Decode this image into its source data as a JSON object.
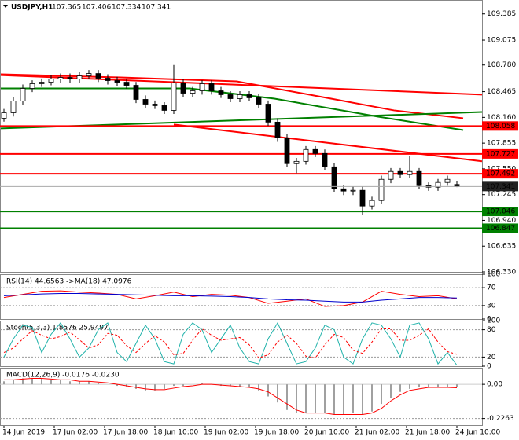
{
  "chart_data": [
    {
      "type": "candlestick",
      "title": "USDJPY,H1",
      "x": [
        0,
        3,
        6,
        9,
        12,
        15,
        18,
        21,
        24,
        27,
        30,
        33,
        36,
        39,
        42,
        45,
        48,
        51,
        54,
        57,
        60,
        63,
        66,
        69,
        72,
        75,
        78,
        81,
        84,
        87,
        90,
        93,
        96,
        99,
        102,
        105,
        108,
        111,
        114,
        117,
        120,
        123,
        126,
        129,
        132,
        135,
        138,
        141,
        144
      ],
      "open": [
        108.15,
        108.215,
        108.354,
        108.503,
        108.559,
        108.577,
        108.614,
        108.633,
        108.614,
        108.651,
        108.679,
        108.624,
        108.596,
        108.577,
        108.54,
        108.373,
        108.317,
        108.299,
        108.243,
        108.568,
        108.447,
        108.475,
        108.559,
        108.475,
        108.429,
        108.382,
        108.429,
        108.392,
        108.317,
        108.104,
        107.918,
        107.612,
        107.639,
        107.779,
        107.732,
        107.574,
        107.314,
        107.287,
        107.296,
        107.11,
        107.175,
        107.426,
        107.519,
        107.482,
        107.519,
        107.352,
        107.333,
        107.389,
        107.365
      ],
      "high": [
        108.26,
        108.4,
        108.55,
        108.6,
        108.62,
        108.66,
        108.68,
        108.68,
        108.7,
        108.72,
        108.72,
        108.67,
        108.64,
        108.62,
        108.58,
        108.42,
        108.36,
        108.34,
        108.78,
        108.61,
        108.52,
        108.6,
        108.6,
        108.52,
        108.47,
        108.47,
        108.47,
        108.44,
        108.36,
        108.15,
        107.96,
        107.68,
        107.82,
        107.82,
        107.78,
        107.62,
        107.36,
        107.34,
        107.34,
        107.22,
        107.47,
        107.56,
        107.56,
        107.7,
        107.56,
        107.39,
        107.43,
        107.47,
        107.406
      ],
      "low": [
        108.11,
        108.17,
        108.31,
        108.46,
        108.52,
        108.54,
        108.57,
        108.57,
        108.57,
        108.61,
        108.58,
        108.55,
        108.53,
        108.5,
        108.33,
        108.27,
        108.26,
        108.2,
        108.2,
        108.4,
        108.4,
        108.43,
        108.43,
        108.39,
        108.34,
        108.34,
        108.35,
        108.27,
        108.06,
        107.87,
        107.57,
        107.5,
        107.6,
        107.69,
        107.53,
        107.27,
        107.24,
        107.24,
        107.0,
        107.07,
        107.13,
        107.38,
        107.44,
        107.44,
        107.31,
        107.29,
        107.29,
        107.35,
        107.334
      ],
      "close": [
        108.215,
        108.354,
        108.503,
        108.559,
        108.577,
        108.614,
        108.633,
        108.614,
        108.651,
        108.679,
        108.624,
        108.596,
        108.577,
        108.54,
        108.373,
        108.317,
        108.299,
        108.243,
        108.568,
        108.447,
        108.475,
        108.559,
        108.475,
        108.429,
        108.382,
        108.429,
        108.392,
        108.317,
        108.104,
        107.918,
        107.612,
        107.639,
        107.779,
        107.732,
        107.574,
        107.314,
        107.287,
        107.296,
        107.11,
        107.175,
        107.426,
        107.519,
        107.482,
        107.519,
        107.352,
        107.333,
        107.389,
        107.426,
        107.341
      ],
      "ylim": [
        106.33,
        109.55
      ],
      "yticks": [
        109.385,
        109.075,
        {
          "value": 108.78,
          "label": "108.780"
        },
        108.465,
        {
          "value": 108.16,
          "label": "108.160"
        },
        107.855,
        {
          "value": 107.55,
          "label": "107.550"
        },
        107.245,
        {
          "value": 106.94,
          "label": "106.940"
        },
        106.635,
        {
          "value": 106.33,
          "label": "106.330"
        }
      ],
      "xlim": [
        -1.25,
        152
      ],
      "xticks": [
        {
          "value": 0,
          "label": "14 Jun 2019"
        },
        {
          "value": 16,
          "label": "17 Jun 02:00"
        },
        {
          "value": 32,
          "label": "17 Jun 18:00"
        },
        {
          "value": 48,
          "label": "18 Jun 10:00"
        },
        {
          "value": 64,
          "label": "19 Jun 02:00"
        },
        {
          "value": 80,
          "label": "19 Jun 18:00"
        },
        {
          "value": 96,
          "label": "20 Jun 10:00"
        },
        {
          "value": 112,
          "label": "21 Jun 02:00"
        },
        {
          "value": 128,
          "label": "21 Jun 18:00"
        },
        {
          "value": 144,
          "label": "24 Jun 10:00"
        }
      ],
      "lines": [
        {
          "color": "#ff0000",
          "x": [
            -1,
            152
          ],
          "y": [
            108.66,
            108.43
          ]
        },
        {
          "color": "#ff0000",
          "x": [
            -1,
            37,
            74,
            104,
            124,
            146
          ],
          "y": [
            108.67,
            108.633,
            108.587,
            108.382,
            108.243,
            108.15
          ]
        },
        {
          "color": "#008000",
          "x": [
            -1,
            59,
            86,
            119,
            146
          ],
          "y": [
            108.503,
            108.503,
            108.382,
            108.168,
            108.01
          ]
        },
        {
          "color": "#008000",
          "x": [
            -1,
            152
          ],
          "y": [
            108.029,
            108.224
          ]
        },
        {
          "color": "#ff0000",
          "x": [
            54,
            152
          ],
          "y": [
            108.076,
            107.64
          ]
        }
      ],
      "levels": [
        {
          "value": 108.058,
          "color": "#ff0000"
        },
        {
          "value": 107.727,
          "color": "#ff0000"
        },
        {
          "value": 107.492,
          "color": "#ff0000"
        },
        {
          "value": 107.046,
          "color": "#008000"
        },
        {
          "value": 106.847,
          "color": "#008000"
        }
      ]
    },
    {
      "type": "line",
      "title": "RSI(14) 44.6563  ->MA(18) 47.0976",
      "x": [
        0,
        6,
        12,
        18,
        24,
        30,
        36,
        42,
        48,
        54,
        60,
        66,
        72,
        78,
        84,
        90,
        96,
        102,
        108,
        114,
        120,
        126,
        132,
        138,
        144
      ],
      "series": [
        {
          "color": "#ff0000",
          "values": [
            48,
            55,
            62,
            63,
            60,
            58,
            55,
            45,
            52,
            60,
            50,
            55,
            53,
            48,
            35,
            40,
            45,
            28,
            30,
            38,
            62,
            55,
            50,
            52,
            45
          ]
        },
        {
          "color": "#0000cd",
          "values": [
            52,
            54,
            56,
            57,
            57,
            56,
            55,
            54,
            53,
            52,
            52,
            51,
            50,
            48,
            45,
            43,
            42,
            40,
            38,
            38,
            42,
            45,
            48,
            48,
            47
          ]
        }
      ],
      "ylim": [
        0,
        100
      ],
      "yticks": [
        100,
        70,
        30,
        0
      ]
    },
    {
      "type": "line",
      "title": "Stoch(5,3,3) 1.8576 25.9497",
      "x": [
        0,
        3,
        6,
        9,
        12,
        15,
        18,
        21,
        24,
        27,
        30,
        33,
        36,
        39,
        42,
        45,
        48,
        51,
        54,
        57,
        60,
        63,
        66,
        69,
        72,
        75,
        78,
        81,
        84,
        87,
        90,
        93,
        96,
        99,
        102,
        105,
        108,
        111,
        114,
        117,
        120,
        123,
        126,
        129,
        132,
        135,
        138,
        141,
        144
      ],
      "series": [
        {
          "color": "#20b2aa",
          "values": [
            20,
            60,
            90,
            85,
            30,
            70,
            95,
            60,
            20,
            40,
            80,
            95,
            30,
            10,
            50,
            90,
            60,
            10,
            5,
            70,
            95,
            80,
            30,
            60,
            90,
            40,
            10,
            5,
            60,
            95,
            50,
            5,
            10,
            40,
            90,
            80,
            20,
            5,
            60,
            95,
            90,
            60,
            20,
            90,
            95,
            60,
            5,
            30,
            2
          ]
        },
        {
          "color": "#ff0000",
          "dashed": true,
          "values": [
            30,
            40,
            60,
            78,
            68,
            60,
            65,
            75,
            58,
            40,
            47,
            72,
            68,
            45,
            30,
            50,
            67,
            53,
            25,
            28,
            57,
            82,
            68,
            57,
            60,
            63,
            47,
            18,
            25,
            53,
            68,
            50,
            22,
            18,
            47,
            70,
            63,
            35,
            28,
            53,
            82,
            82,
            57,
            57,
            68,
            82,
            53,
            32,
            26
          ]
        }
      ],
      "ylim": [
        0,
        100
      ],
      "yticks": [
        100,
        80,
        20,
        0
      ]
    },
    {
      "type": "macd",
      "title": "MACD(12,26,9) -0.0176 -0.0230",
      "x": [
        0,
        3,
        6,
        9,
        12,
        15,
        18,
        21,
        24,
        27,
        30,
        33,
        36,
        39,
        42,
        45,
        48,
        51,
        54,
        57,
        60,
        63,
        66,
        69,
        72,
        75,
        78,
        81,
        84,
        87,
        90,
        93,
        96,
        99,
        102,
        105,
        108,
        111,
        114,
        117,
        120,
        123,
        126,
        129,
        132,
        135,
        138,
        141,
        144
      ],
      "series": [
        {
          "color": "#a0a0a0",
          "values": [
            0.02,
            0.03,
            0.04,
            0.04,
            0.04,
            0.03,
            0.03,
            0.02,
            0.02,
            0.02,
            0.01,
            0.0,
            -0.01,
            -0.02,
            -0.03,
            -0.04,
            -0.04,
            -0.03,
            -0.01,
            -0.01,
            0.0,
            0.01,
            0.0,
            -0.01,
            -0.01,
            -0.02,
            -0.02,
            -0.04,
            -0.08,
            -0.12,
            -0.17,
            -0.19,
            -0.19,
            -0.19,
            -0.19,
            -0.2,
            -0.2,
            -0.19,
            -0.2,
            -0.18,
            -0.13,
            -0.09,
            -0.05,
            -0.03,
            -0.02,
            -0.02,
            -0.02,
            -0.02,
            -0.02
          ]
        },
        {
          "color": "#ff0000",
          "values": [
            0.03,
            0.03,
            0.035,
            0.04,
            0.04,
            0.035,
            0.03,
            0.03,
            0.02,
            0.02,
            0.015,
            0.01,
            0.0,
            -0.01,
            -0.02,
            -0.03,
            -0.035,
            -0.035,
            -0.025,
            -0.015,
            -0.01,
            0.0,
            0.0,
            -0.005,
            -0.01,
            -0.015,
            -0.02,
            -0.03,
            -0.05,
            -0.09,
            -0.13,
            -0.17,
            -0.19,
            -0.19,
            -0.19,
            -0.2,
            -0.2,
            -0.2,
            -0.2,
            -0.19,
            -0.16,
            -0.11,
            -0.07,
            -0.04,
            -0.03,
            -0.02,
            -0.02,
            -0.02,
            -0.023
          ]
        }
      ],
      "ylim": [
        -0.27,
        0.11
      ],
      "yticks": [
        {
          "value": 0,
          "label": "0.00"
        },
        -0.2263
      ]
    }
  ]
}
